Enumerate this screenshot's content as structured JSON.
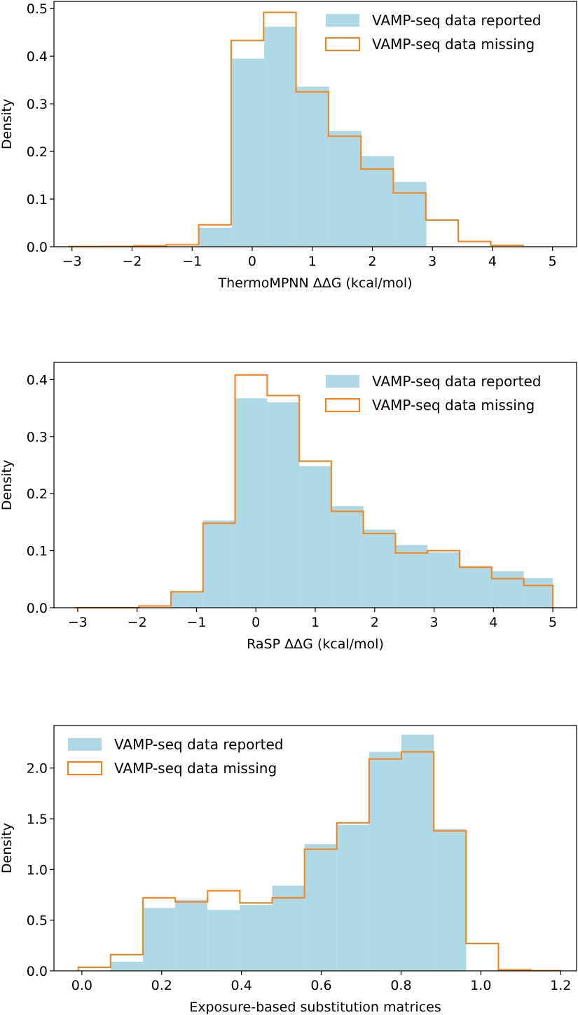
{
  "figure": {
    "series_names": [
      "VAMP-seq data reported",
      "VAMP-seq data missing"
    ],
    "colors": {
      "reported": "#add8e6",
      "missing": "#ff7f0e"
    }
  },
  "chart_data": [
    {
      "type": "histogram",
      "xlabel": "ThermoMPNN ΔΔG (kcal/mol)",
      "ylabel": "Density",
      "xlim": [
        -3.3,
        5.4
      ],
      "ylim": [
        0,
        0.515
      ],
      "xticks": [
        -3,
        -2,
        -1,
        0,
        1,
        2,
        3,
        4,
        5
      ],
      "xtick_labels": [
        "−3",
        "−2",
        "−1",
        "0",
        "1",
        "2",
        "3",
        "4",
        "5"
      ],
      "yticks": [
        0.0,
        0.1,
        0.2,
        0.3,
        0.4,
        0.5
      ],
      "ytick_labels": [
        "0.0",
        "0.1",
        "0.2",
        "0.3",
        "0.4",
        "0.5"
      ],
      "legend": {
        "position": "top-right",
        "entries": [
          "VAMP-seq data reported",
          "VAMP-seq data missing"
        ]
      },
      "series": [
        {
          "name": "VAMP-seq data reported",
          "style": "filled",
          "edges": [
            -0.88,
            -0.34,
            0.2,
            0.74,
            1.28,
            1.82,
            2.36,
            2.9
          ],
          "values": [
            0.04,
            0.395,
            0.462,
            0.336,
            0.243,
            0.19,
            0.136
          ]
        },
        {
          "name": "VAMP-seq data missing",
          "style": "step",
          "edges": [
            -3.05,
            -2.51,
            -1.97,
            -1.43,
            -0.89,
            -0.35,
            0.19,
            0.73,
            1.27,
            1.81,
            2.35,
            2.89,
            3.43,
            3.97,
            4.51
          ],
          "values": [
            0.0005,
            0.0008,
            0.002,
            0.004,
            0.046,
            0.433,
            0.492,
            0.325,
            0.232,
            0.163,
            0.113,
            0.056,
            0.011,
            0.003
          ]
        }
      ]
    },
    {
      "type": "histogram",
      "xlabel": "RaSP ΔΔG (kcal/mol)",
      "ylabel": "Density",
      "xlim": [
        -3.4,
        5.4
      ],
      "ylim": [
        0,
        0.43
      ],
      "xticks": [
        -3,
        -2,
        -1,
        0,
        1,
        2,
        3,
        4,
        5
      ],
      "xtick_labels": [
        "−3",
        "−2",
        "−1",
        "0",
        "1",
        "2",
        "3",
        "4",
        "5"
      ],
      "yticks": [
        0.0,
        0.1,
        0.2,
        0.3,
        0.4
      ],
      "ytick_labels": [
        "0.0",
        "0.1",
        "0.2",
        "0.3",
        "0.4"
      ],
      "legend": {
        "position": "top-right",
        "entries": [
          "VAMP-seq data reported",
          "VAMP-seq data missing"
        ]
      },
      "series": [
        {
          "name": "VAMP-seq data reported",
          "style": "filled",
          "edges": [
            -1.43,
            -0.89,
            -0.35,
            0.19,
            0.73,
            1.27,
            1.81,
            2.35,
            2.89,
            3.43,
            3.97,
            4.51,
            5.0
          ],
          "values": [
            0.027,
            0.153,
            0.367,
            0.36,
            0.248,
            0.178,
            0.137,
            0.11,
            0.097,
            0.073,
            0.064,
            0.052
          ]
        },
        {
          "name": "VAMP-seq data missing",
          "style": "step",
          "edges": [
            -3.05,
            -2.51,
            -1.97,
            -1.43,
            -0.89,
            -0.35,
            0.19,
            0.73,
            1.27,
            1.81,
            2.35,
            2.89,
            3.43,
            3.97,
            4.51,
            5.0
          ],
          "values": [
            0.0,
            0.0,
            0.003,
            0.028,
            0.148,
            0.408,
            0.372,
            0.257,
            0.169,
            0.13,
            0.096,
            0.1,
            0.071,
            0.051,
            0.039
          ]
        }
      ]
    },
    {
      "type": "histogram",
      "xlabel": "Exposure-based substitution matrices",
      "ylabel": "Density",
      "xlim": [
        -0.07,
        1.24
      ],
      "ylim": [
        0,
        2.42
      ],
      "xticks": [
        0.0,
        0.2,
        0.4,
        0.6,
        0.8,
        1.0,
        1.2
      ],
      "xtick_labels": [
        "0.0",
        "0.2",
        "0.4",
        "0.6",
        "0.8",
        "1.0",
        "1.2"
      ],
      "yticks": [
        0.0,
        0.5,
        1.0,
        1.5,
        2.0
      ],
      "ytick_labels": [
        "0.0",
        "0.5",
        "1.0",
        "1.5",
        "2.0"
      ],
      "legend": {
        "position": "top-left",
        "entries": [
          "VAMP-seq data reported",
          "VAMP-seq data missing"
        ]
      },
      "series": [
        {
          "name": "VAMP-seq data reported",
          "style": "filled",
          "edges": [
            0.072,
            0.153,
            0.234,
            0.315,
            0.396,
            0.477,
            0.558,
            0.639,
            0.72,
            0.801,
            0.882,
            0.963
          ],
          "values": [
            0.09,
            0.62,
            0.7,
            0.6,
            0.65,
            0.84,
            1.25,
            1.44,
            2.16,
            2.33,
            1.4
          ]
        },
        {
          "name": "VAMP-seq data missing",
          "style": "step",
          "edges": [
            -0.009,
            0.072,
            0.153,
            0.234,
            0.315,
            0.396,
            0.477,
            0.558,
            0.639,
            0.72,
            0.801,
            0.882,
            0.963,
            1.044,
            1.125,
            1.2
          ],
          "values": [
            0.035,
            0.16,
            0.72,
            0.68,
            0.79,
            0.67,
            0.72,
            1.2,
            1.46,
            2.09,
            2.16,
            1.38,
            0.27,
            0.01,
            0.003
          ]
        }
      ]
    }
  ]
}
